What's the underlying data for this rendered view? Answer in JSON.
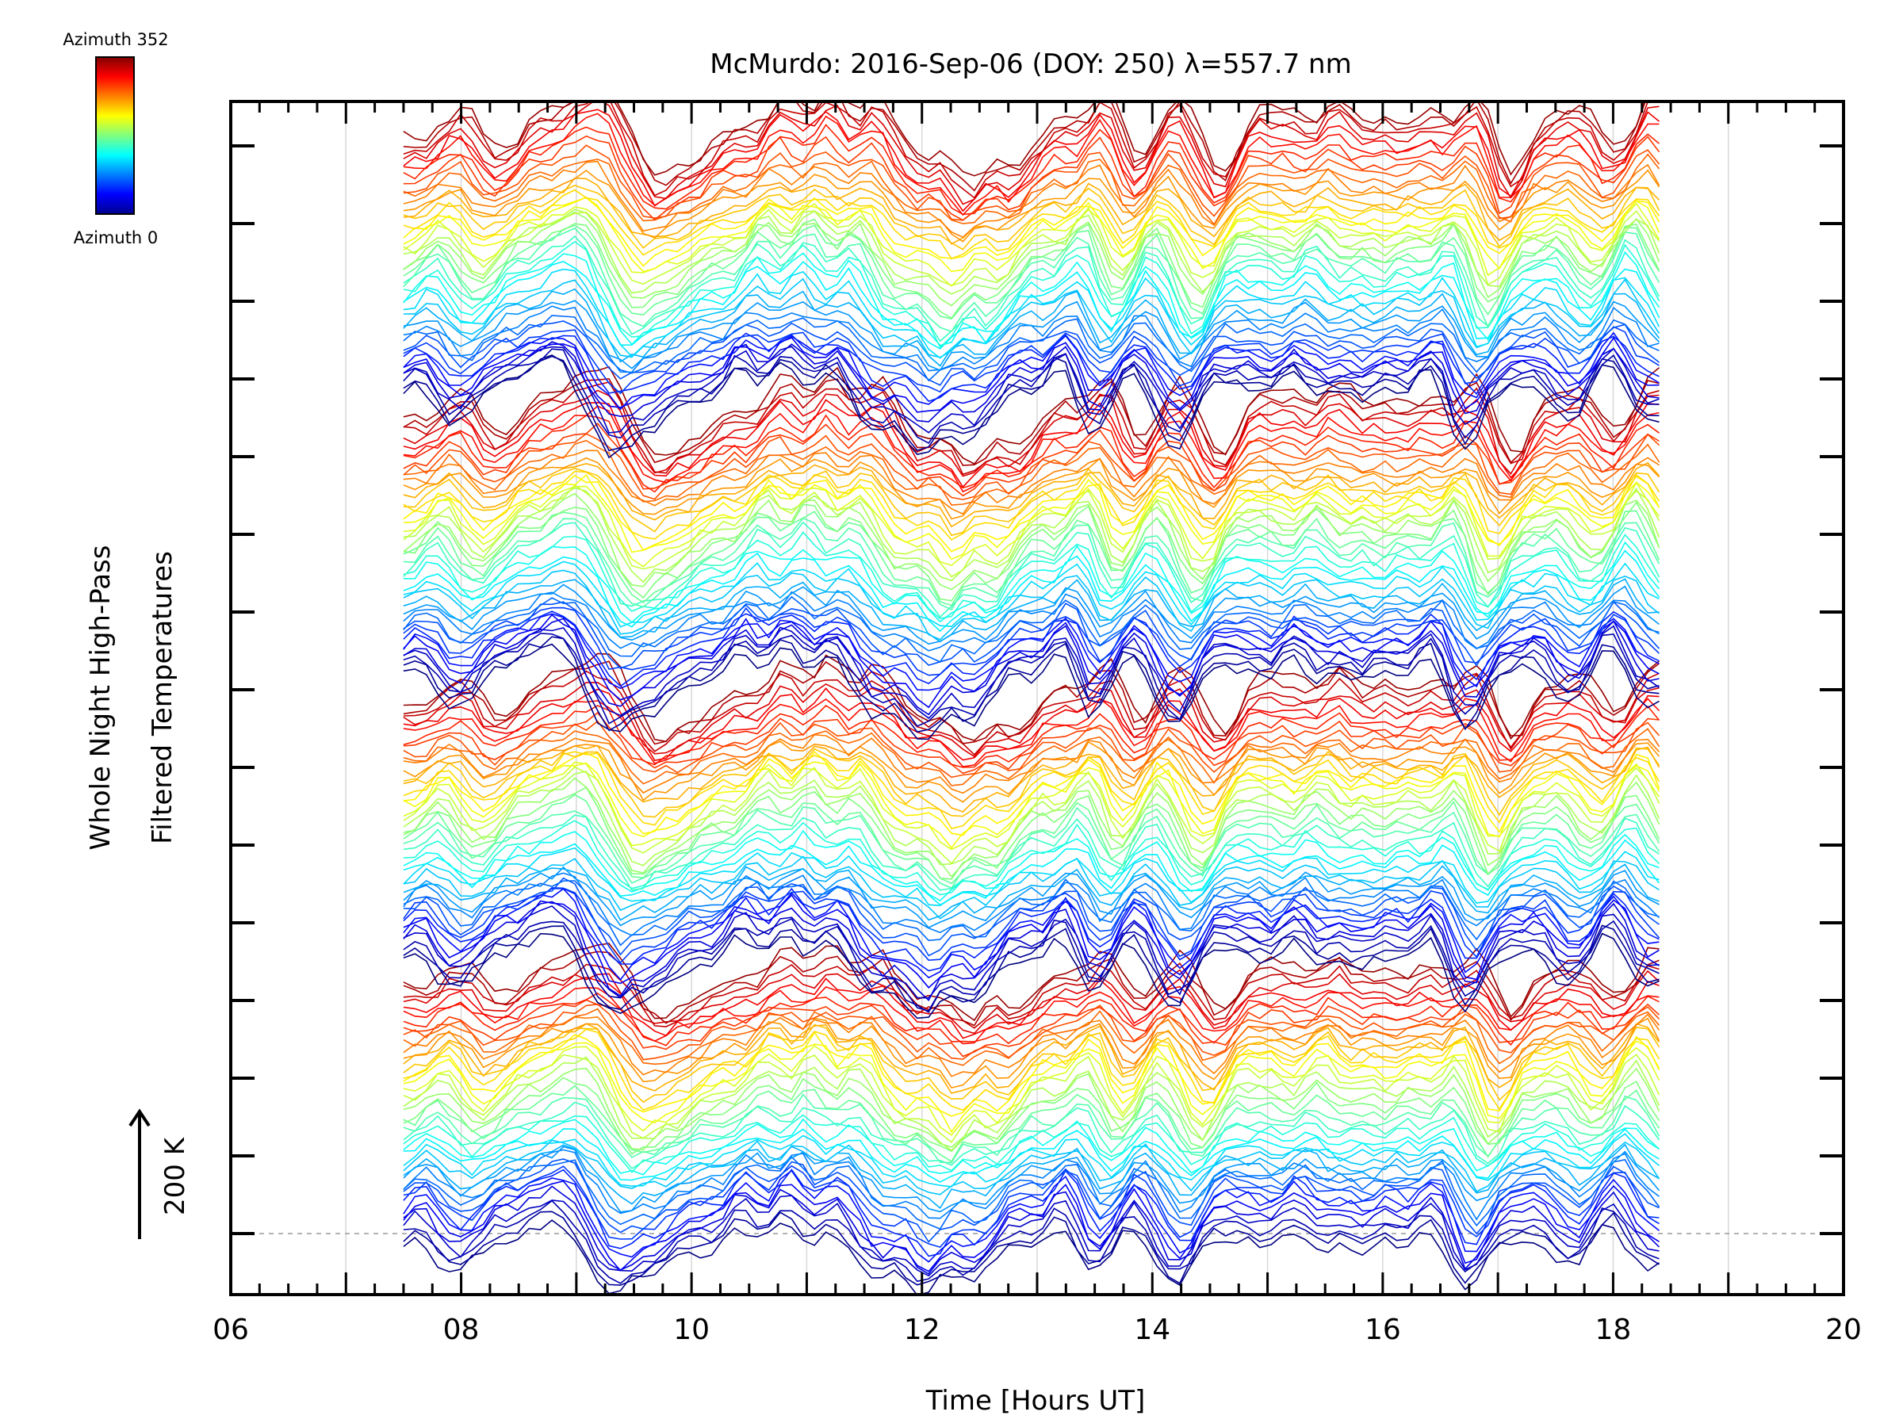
{
  "chart_data": {
    "type": "line",
    "title": "McMurdo: 2016-Sep-06 (DOY: 250) λ=557.7 nm",
    "xlabel": "Time [Hours UT]",
    "ylabel_line1": "Whole Night High-Pass",
    "ylabel_line2": "Filtered Temperatures",
    "scale_label": "200 K",
    "xlim": [
      6,
      20
    ],
    "x_tick_labels": [
      "06",
      "08",
      "10",
      "12",
      "14",
      "16",
      "18",
      "20"
    ],
    "x_tick_values": [
      6,
      8,
      10,
      12,
      14,
      16,
      18,
      20
    ],
    "data_time_range": [
      7.5,
      18.4
    ],
    "colorbar": {
      "top_label": "Azimuth 352",
      "bottom_label": "Azimuth 0",
      "min": 0,
      "max": 352
    },
    "series_note": "Stacked high-pass filtered temperature traces, one per azimuth direction, offset vertically; color encodes azimuth (0 to 352 degrees).",
    "n_series": 176,
    "baseline_dashed": true
  }
}
